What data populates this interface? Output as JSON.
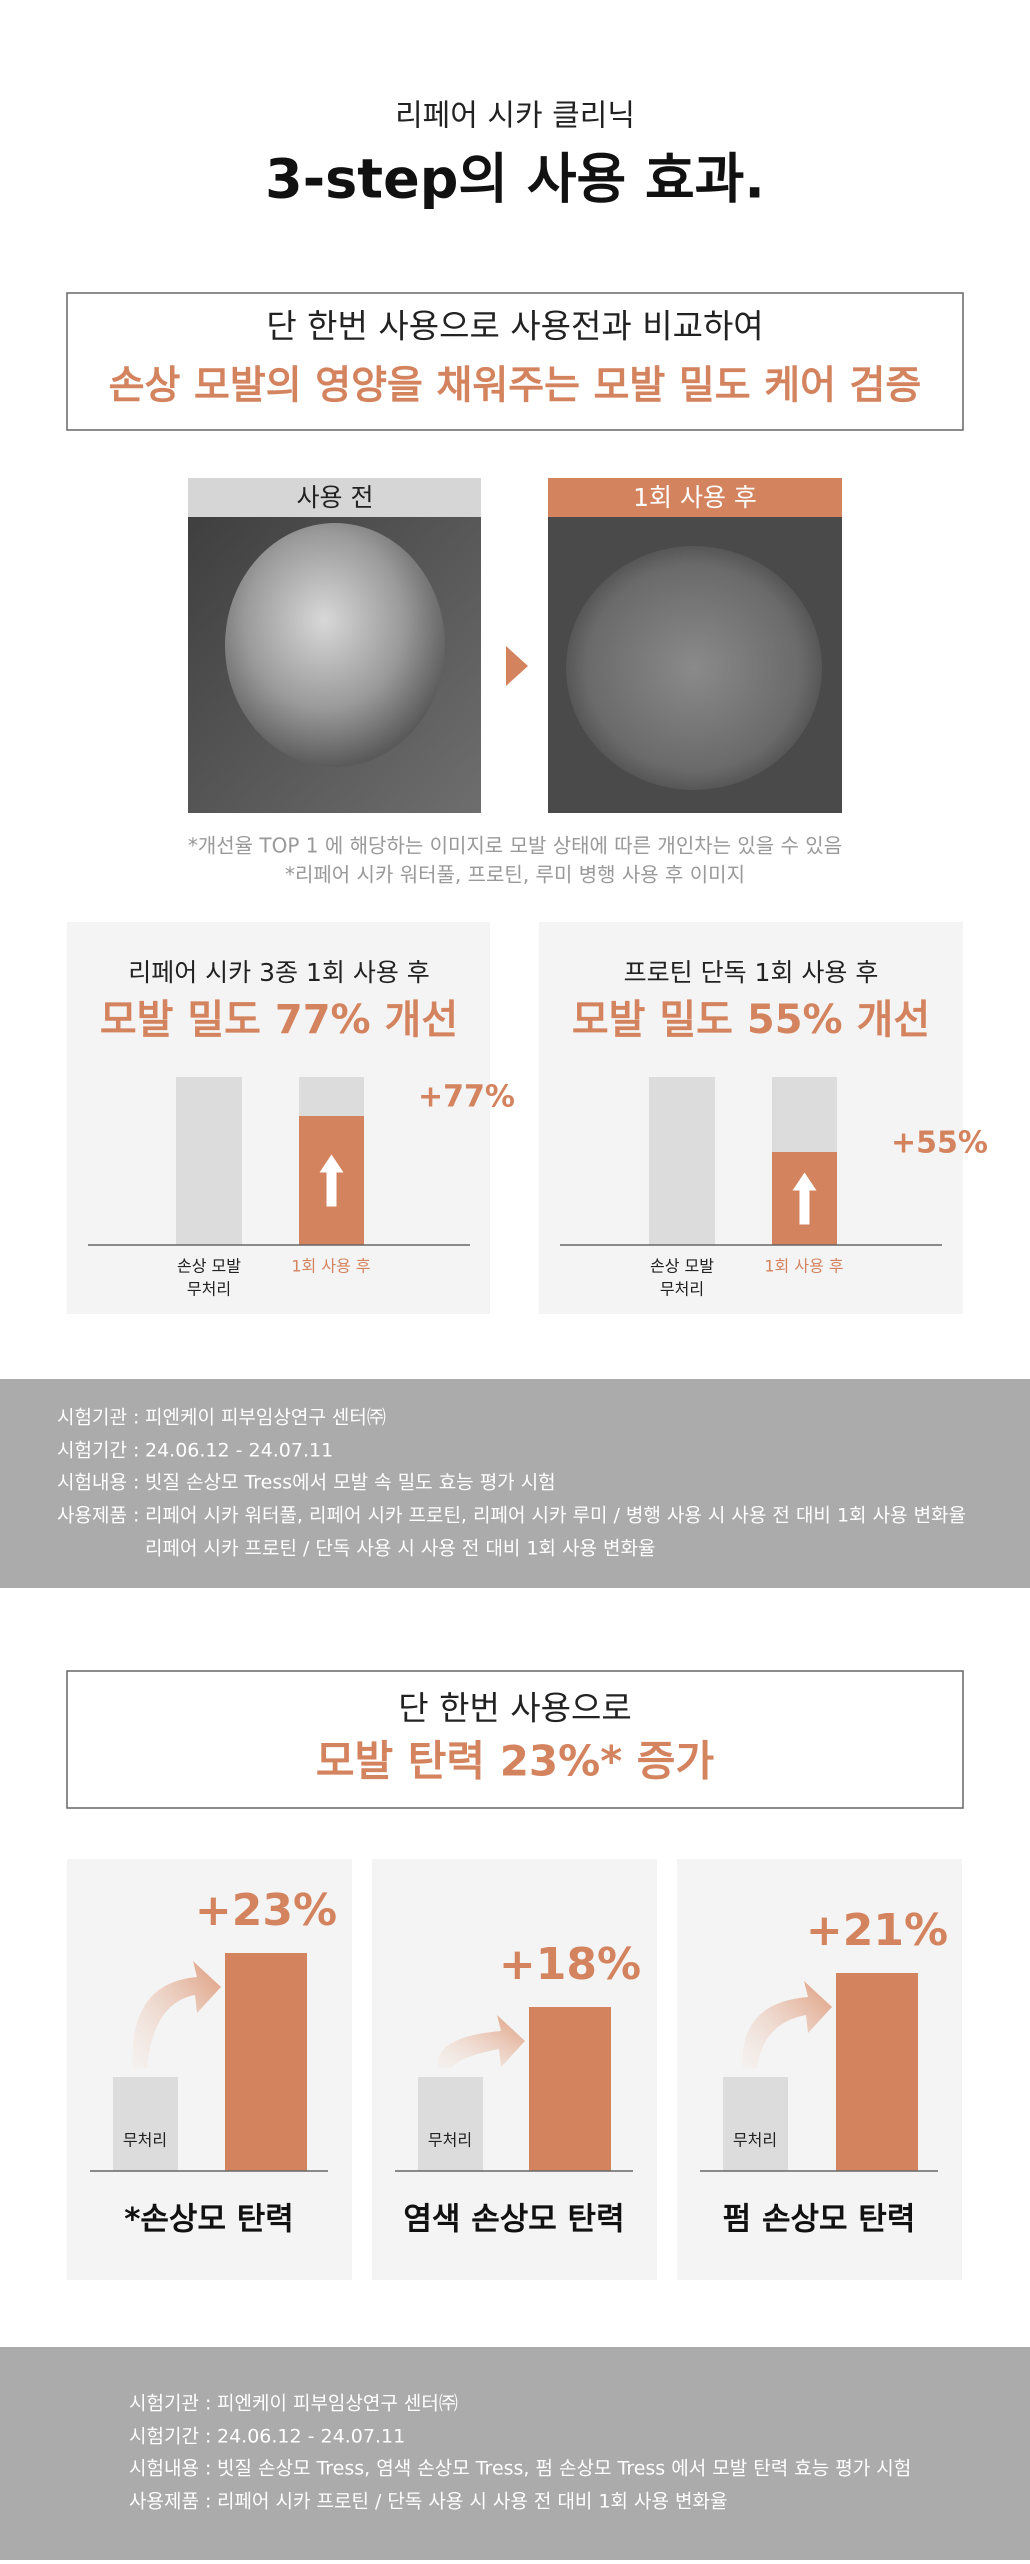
{
  "header": {
    "subtitle": "리페어 시카 클리닉",
    "title": "3-step의 사용 효과."
  },
  "section1": {
    "box": {
      "line1": "단 한번 사용으로 사용전과 비교하여",
      "line2": "손상 모발의 영양을 채워주는 모발 밀도 케어 검증"
    },
    "images": [
      {
        "label": "사용 전"
      },
      {
        "label": "1회 사용 후"
      }
    ],
    "notes": [
      "*개선율 TOP 1 에 해당하는 이미지로 모발 상태에 따른 개인차는 있을 수 있음",
      "*리페어 시카 워터풀, 프로틴, 루미 병행 사용 후 이미지"
    ],
    "panels": [
      {
        "caption": "리페어 시카 3종 1회 사용 후",
        "headline": "모발 밀도 77% 개선",
        "before_label": [
          "손상 모발",
          "무처리"
        ],
        "after_label": "1회 사용 후",
        "change": "+77%"
      },
      {
        "caption": "프로틴 단독 1회 사용 후",
        "headline": "모발 밀도 55% 개선",
        "before_label": [
          "손상 모발",
          "무처리"
        ],
        "after_label": "1회 사용 후",
        "change": "+55%"
      }
    ],
    "test_info": [
      {
        "label": "시험기관 :",
        "lines": [
          "피엔케이 피부임상연구 센터㈜"
        ]
      },
      {
        "label": "시험기간 :",
        "lines": [
          "24.06.12 - 24.07.11"
        ]
      },
      {
        "label": "시험내용 :",
        "lines": [
          "빗질 손상모 Tress에서 모발 속 밀도 효능 평가 시험"
        ]
      },
      {
        "label": "사용제품 :",
        "lines": [
          "리페어 시카 워터풀, 리페어 시카 프로틴, 리페어 시카 루미 / 병행 사용 시 사용 전 대비 1회 사용 변화율",
          "리페어 시카 프로틴 / 단독 사용 시 사용 전 대비 1회 사용 변화율"
        ]
      }
    ]
  },
  "section2": {
    "box": {
      "line1": "단 한번 사용으로",
      "line2": "모발 탄력 23%* 증가"
    },
    "panels": [
      {
        "change": "+23%",
        "before_label": "무처리",
        "caption": "*손상모 탄력"
      },
      {
        "change": "+18%",
        "before_label": "무처리",
        "caption": "염색 손상모 탄력"
      },
      {
        "change": "+21%",
        "before_label": "무처리",
        "caption": "펌 손상모 탄력"
      }
    ],
    "test_info": [
      {
        "label": "시험기관 :",
        "lines": [
          "피엔케이 피부임상연구 센터㈜"
        ]
      },
      {
        "label": "시험기간 :",
        "lines": [
          "24.06.12 - 24.07.11"
        ]
      },
      {
        "label": "시험내용 :",
        "lines": [
          "빗질 손상모 Tress, 염색 손상모 Tress, 펌 손상모 Tress 에서 모발 탄력 효능 평가 시험"
        ]
      },
      {
        "label": "사용제품 :",
        "lines": [
          "리페어 시카 프로틴 / 단독 사용 시 사용 전 대비 1회 사용 변화율"
        ]
      }
    ]
  }
}
